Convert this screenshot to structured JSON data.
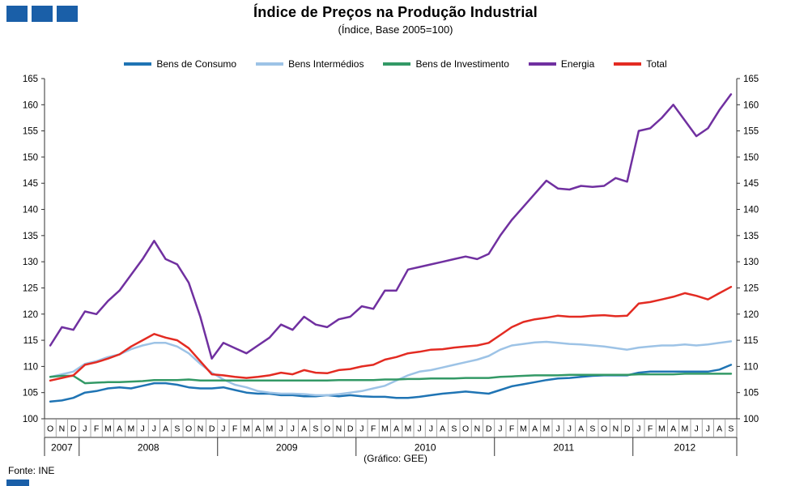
{
  "colors": {
    "logo": "#1A5FA8",
    "axis": "#303030",
    "separator": "#909090"
  },
  "footer": {
    "source": "Fonte: INE",
    "credit": "(Gráfico: GEE)"
  },
  "chart_data": {
    "type": "line",
    "title": "Índice de Preços na Produção Industrial",
    "subtitle": "(Índice, Base 2005=100)",
    "ylim": [
      100,
      165
    ],
    "ytick_step": 5,
    "grid": false,
    "legend_position": "top",
    "x_months": [
      "O",
      "N",
      "D",
      "J",
      "F",
      "M",
      "A",
      "M",
      "J",
      "J",
      "A",
      "S",
      "O",
      "N",
      "D",
      "J",
      "F",
      "M",
      "A",
      "M",
      "J",
      "J",
      "A",
      "S",
      "O",
      "N",
      "D",
      "J",
      "F",
      "M",
      "A",
      "M",
      "J",
      "J",
      "A",
      "S",
      "O",
      "N",
      "D",
      "J",
      "F",
      "M",
      "A",
      "M",
      "J",
      "J",
      "A",
      "S",
      "O",
      "N",
      "D",
      "J",
      "F",
      "M",
      "A",
      "M",
      "J",
      "J",
      "A",
      "S"
    ],
    "year_groups": [
      {
        "label": "2007",
        "start": 0,
        "count": 3
      },
      {
        "label": "2008",
        "start": 3,
        "count": 12
      },
      {
        "label": "2009",
        "start": 15,
        "count": 12
      },
      {
        "label": "2010",
        "start": 27,
        "count": 12
      },
      {
        "label": "2011",
        "start": 39,
        "count": 12
      },
      {
        "label": "2012",
        "start": 51,
        "count": 9
      }
    ],
    "series": [
      {
        "name": "Bens de Consumo",
        "color": "#1F74B4",
        "values": [
          103.3,
          103.5,
          104,
          105,
          105.3,
          105.8,
          106,
          105.8,
          106.3,
          106.8,
          106.8,
          106.5,
          106,
          105.8,
          105.8,
          106,
          105.5,
          105,
          104.8,
          104.8,
          104.5,
          104.5,
          104.3,
          104.3,
          104.5,
          104.3,
          104.5,
          104.3,
          104.2,
          104.2,
          104,
          104,
          104.2,
          104.5,
          104.8,
          105,
          105.2,
          105,
          104.8,
          105.5,
          106.2,
          106.6,
          107,
          107.4,
          107.7,
          107.8,
          108,
          108.2,
          108.3,
          108.3,
          108.3,
          108.8,
          109,
          109,
          109,
          109,
          109,
          109,
          109.4,
          110.3
        ]
      },
      {
        "name": "Bens Intermédios",
        "color": "#9DC3E6",
        "values": [
          108,
          108.5,
          109,
          110.5,
          111,
          111.8,
          112.3,
          113.3,
          114,
          114.5,
          114.5,
          113.8,
          112.5,
          110.5,
          108.8,
          107.5,
          106.5,
          106,
          105.3,
          105,
          104.8,
          104.8,
          104.7,
          104.5,
          104.5,
          104.7,
          105,
          105.3,
          105.8,
          106.3,
          107.3,
          108.3,
          109,
          109.3,
          109.8,
          110.3,
          110.8,
          111.3,
          112,
          113.2,
          114,
          114.3,
          114.6,
          114.7,
          114.5,
          114.3,
          114.2,
          114,
          113.8,
          113.5,
          113.2,
          113.6,
          113.8,
          114,
          114,
          114.2,
          114,
          114.2,
          114.5,
          114.8
        ]
      },
      {
        "name": "Bens de Investimento",
        "color": "#339966",
        "values": [
          108,
          108.2,
          108.2,
          106.8,
          106.9,
          107,
          107,
          107.1,
          107.2,
          107.4,
          107.4,
          107.4,
          107.5,
          107.3,
          107.3,
          107.3,
          107.3,
          107.3,
          107.3,
          107.3,
          107.3,
          107.3,
          107.3,
          107.3,
          107.3,
          107.4,
          107.4,
          107.4,
          107.4,
          107.5,
          107.5,
          107.6,
          107.6,
          107.7,
          107.7,
          107.7,
          107.8,
          107.8,
          107.8,
          108,
          108.1,
          108.2,
          108.3,
          108.3,
          108.3,
          108.4,
          108.4,
          108.4,
          108.4,
          108.4,
          108.4,
          108.5,
          108.5,
          108.5,
          108.5,
          108.6,
          108.6,
          108.6,
          108.6,
          108.6
        ]
      },
      {
        "name": "Energia",
        "color": "#7030A0",
        "values": [
          114,
          117.5,
          117,
          120.5,
          120,
          122.5,
          124.5,
          127.5,
          130.5,
          134,
          130.5,
          129.5,
          126,
          119.5,
          111.5,
          114.5,
          113.5,
          112.5,
          114,
          115.5,
          118,
          117,
          119.5,
          118,
          117.5,
          119,
          119.5,
          121.5,
          121,
          124.5,
          124.5,
          128.5,
          129,
          129.5,
          130,
          130.5,
          131,
          130.5,
          131.5,
          135,
          138,
          140.5,
          143,
          145.5,
          144,
          143.8,
          144.5,
          144.3,
          144.5,
          146,
          145.3,
          155,
          155.5,
          157.5,
          160,
          157,
          154,
          155.5,
          159,
          162
        ]
      },
      {
        "name": "Total",
        "color": "#E32B22",
        "values": [
          107.3,
          107.8,
          108.3,
          110.3,
          110.8,
          111.5,
          112.3,
          113.8,
          115,
          116.2,
          115.5,
          115,
          113.5,
          111,
          108.5,
          108.3,
          108,
          107.8,
          108,
          108.3,
          108.8,
          108.5,
          109.3,
          108.8,
          108.7,
          109.3,
          109.5,
          110,
          110.3,
          111.3,
          111.8,
          112.5,
          112.8,
          113.2,
          113.3,
          113.6,
          113.8,
          114,
          114.5,
          116,
          117.5,
          118.5,
          119,
          119.3,
          119.7,
          119.5,
          119.5,
          119.7,
          119.8,
          119.6,
          119.7,
          122,
          122.3,
          122.8,
          123.3,
          124,
          123.5,
          122.8,
          124,
          125.2
        ]
      }
    ]
  }
}
